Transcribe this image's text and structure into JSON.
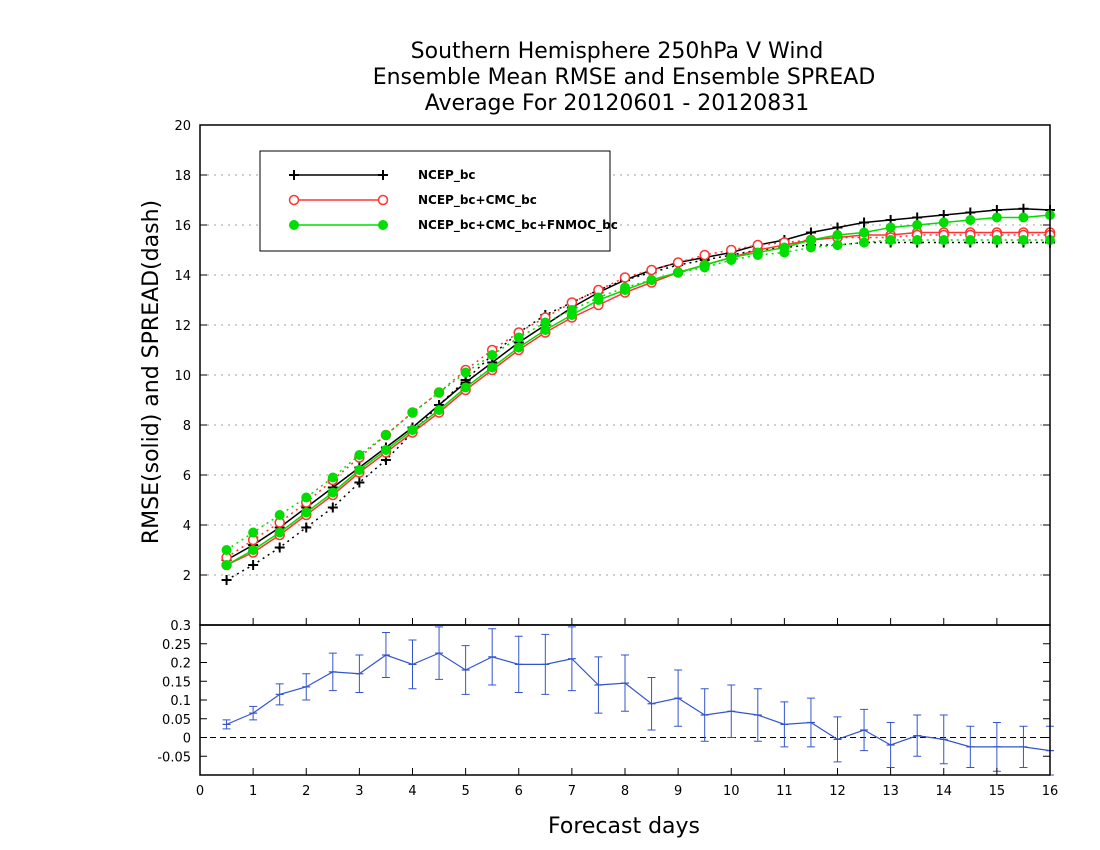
{
  "chart_data": {
    "type": "line",
    "title": [
      "Southern Hemisphere 250hPa V Wind",
      "Ensemble Mean RMSE and Ensemble SPREAD",
      "Average For 20120601 - 20120831"
    ],
    "xlabel": "Forecast days",
    "ylabel": "RMSE(solid) and SPREAD(dash)",
    "xlim": [
      0,
      16
    ],
    "xticks": [
      "0",
      "1",
      "2",
      "3",
      "4",
      "5",
      "6",
      "7",
      "8",
      "9",
      "10",
      "11",
      "12",
      "13",
      "14",
      "15",
      "16"
    ],
    "top_panel": {
      "ylim": [
        0,
        20
      ],
      "yticks": [
        "2",
        "4",
        "6",
        "8",
        "10",
        "12",
        "14",
        "16",
        "18",
        "20"
      ],
      "grid": true,
      "legend_position": "top-left",
      "x": [
        0.5,
        1,
        1.5,
        2,
        2.5,
        3,
        3.5,
        4,
        4.5,
        5,
        5.5,
        6,
        6.5,
        7,
        7.5,
        8,
        8.5,
        9,
        9.5,
        10,
        10.5,
        11,
        11.5,
        12,
        12.5,
        13,
        13.5,
        14,
        14.5,
        15,
        15.5,
        16
      ],
      "series": [
        {
          "name": "NCEP_bc",
          "color": "#000000",
          "marker": "plus",
          "rmse": [
            2.6,
            3.2,
            3.9,
            4.7,
            5.5,
            6.3,
            7.1,
            7.9,
            8.8,
            9.7,
            10.5,
            11.3,
            12.0,
            12.7,
            13.3,
            13.8,
            14.2,
            14.5,
            14.7,
            14.9,
            15.2,
            15.4,
            15.7,
            15.9,
            16.1,
            16.2,
            16.3,
            16.4,
            16.5,
            16.6,
            16.65,
            16.6
          ],
          "spread": [
            1.8,
            2.4,
            3.1,
            3.9,
            4.7,
            5.7,
            6.6,
            7.7,
            8.8,
            9.8,
            10.8,
            11.7,
            12.4,
            12.9,
            13.4,
            13.8,
            14.1,
            14.4,
            14.6,
            14.8,
            15.0,
            15.1,
            15.2,
            15.2,
            15.3,
            15.3,
            15.3,
            15.3,
            15.3,
            15.3,
            15.3,
            15.3
          ]
        },
        {
          "name": "NCEP_bc+CMC_bc",
          "color": "#ff3333",
          "marker": "open-circle",
          "rmse": [
            2.4,
            2.9,
            3.6,
            4.4,
            5.2,
            6.1,
            6.9,
            7.7,
            8.5,
            9.4,
            10.2,
            11.0,
            11.7,
            12.3,
            12.8,
            13.3,
            13.7,
            14.1,
            14.4,
            14.7,
            15.0,
            15.2,
            15.4,
            15.5,
            15.6,
            15.6,
            15.7,
            15.7,
            15.7,
            15.7,
            15.7,
            15.7
          ],
          "spread": [
            2.7,
            3.4,
            4.1,
            4.9,
            5.8,
            6.7,
            7.6,
            8.5,
            9.3,
            10.2,
            11.0,
            11.7,
            12.3,
            12.9,
            13.4,
            13.9,
            14.2,
            14.5,
            14.8,
            15.0,
            15.2,
            15.3,
            15.4,
            15.5,
            15.5,
            15.5,
            15.6,
            15.6,
            15.6,
            15.6,
            15.6,
            15.6
          ]
        },
        {
          "name": "NCEP_bc+CMC_bc+FNMOC_bc",
          "color": "#00dd00",
          "marker": "filled-circle",
          "rmse": [
            2.4,
            3.0,
            3.7,
            4.5,
            5.3,
            6.2,
            7.0,
            7.8,
            8.6,
            9.5,
            10.3,
            11.1,
            11.8,
            12.4,
            13.0,
            13.4,
            13.8,
            14.1,
            14.4,
            14.7,
            14.9,
            15.1,
            15.4,
            15.6,
            15.7,
            15.9,
            16.0,
            16.1,
            16.2,
            16.3,
            16.3,
            16.4
          ],
          "spread": [
            3.0,
            3.7,
            4.4,
            5.1,
            5.9,
            6.8,
            7.6,
            8.5,
            9.3,
            10.1,
            10.8,
            11.5,
            12.1,
            12.6,
            13.1,
            13.5,
            13.8,
            14.1,
            14.3,
            14.6,
            14.8,
            14.9,
            15.1,
            15.2,
            15.3,
            15.4,
            15.4,
            15.4,
            15.4,
            15.4,
            15.4,
            15.4
          ]
        }
      ]
    },
    "bottom_panel": {
      "ylim": [
        -0.1,
        0.3
      ],
      "yticks": [
        "-0.05",
        "0",
        "0.05",
        "0.1",
        "0.15",
        "0.2",
        "0.25",
        "0.3"
      ],
      "color": "#3355cc",
      "zero_line": true,
      "x": [
        0.5,
        1,
        1.5,
        2,
        2.5,
        3,
        3.5,
        4,
        4.5,
        5,
        5.5,
        6,
        6.5,
        7,
        7.5,
        8,
        8.5,
        9,
        9.5,
        10,
        10.5,
        11,
        11.5,
        12,
        12.5,
        13,
        13.5,
        14,
        14.5,
        15,
        15.5,
        16
      ],
      "values": [
        0.035,
        0.065,
        0.115,
        0.135,
        0.175,
        0.17,
        0.22,
        0.195,
        0.225,
        0.18,
        0.215,
        0.195,
        0.195,
        0.21,
        0.14,
        0.145,
        0.09,
        0.105,
        0.06,
        0.07,
        0.06,
        0.035,
        0.04,
        -0.005,
        0.02,
        -0.02,
        0.005,
        -0.005,
        -0.025,
        -0.025,
        -0.025,
        -0.035
      ],
      "error": [
        0.012,
        0.018,
        0.028,
        0.035,
        0.05,
        0.05,
        0.06,
        0.065,
        0.07,
        0.065,
        0.075,
        0.075,
        0.08,
        0.085,
        0.075,
        0.075,
        0.07,
        0.075,
        0.07,
        0.07,
        0.07,
        0.06,
        0.065,
        0.06,
        0.055,
        0.06,
        0.055,
        0.065,
        0.055,
        0.065,
        0.055,
        0.065
      ]
    }
  }
}
